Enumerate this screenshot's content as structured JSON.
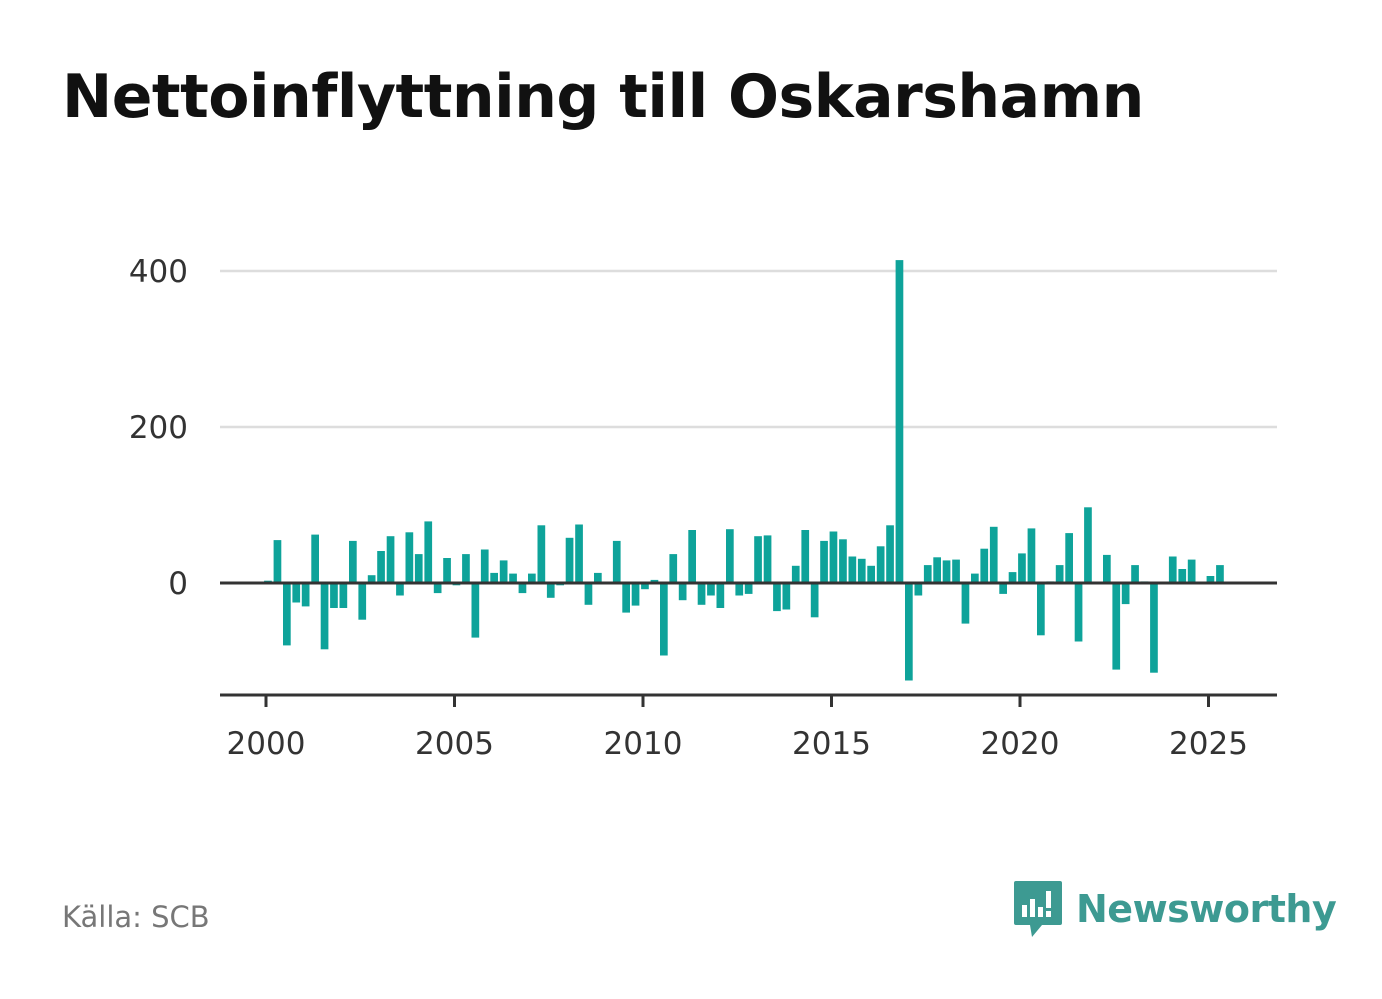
{
  "title": "Nettoinflyttning till Oskarshamn",
  "source": "Källa: SCB",
  "brand": {
    "name": "Newsworthy",
    "icon": "chart-bubble-icon",
    "color": "#3d9a92"
  },
  "chart_data": {
    "type": "bar",
    "title": "Nettoinflyttning till Oskarshamn",
    "xlabel": "",
    "ylabel": "",
    "frequency": "quarterly",
    "start": 2000.0,
    "xlim": [
      1999.25,
      2026.75
    ],
    "ylim": [
      -143,
      430
    ],
    "xticks": [
      2000,
      2005,
      2010,
      2015,
      2020,
      2025
    ],
    "yticks": [
      0,
      200,
      400
    ],
    "grid": "horizontal",
    "bar_color": "#0ea39a",
    "values": [
      3,
      55,
      -80,
      -25,
      -30,
      62,
      -85,
      -32,
      -32,
      54,
      -47,
      10,
      41,
      60,
      -16,
      65,
      37,
      79,
      -13,
      32,
      -3,
      37,
      -70,
      43,
      13,
      29,
      12,
      -13,
      12,
      74,
      -19,
      -3,
      58,
      75,
      -28,
      13,
      0,
      54,
      -38,
      -29,
      -8,
      4,
      -93,
      37,
      -22,
      68,
      -28,
      -16,
      -32,
      69,
      -16,
      -14,
      60,
      61,
      -36,
      -34,
      22,
      68,
      -44,
      54,
      66,
      56,
      34,
      31,
      22,
      47,
      74,
      414,
      -125,
      -16,
      23,
      33,
      29,
      30,
      -52,
      12,
      44,
      72,
      -14,
      14,
      38,
      70,
      -67,
      2,
      23,
      64,
      -75,
      97,
      1,
      36,
      -111,
      -27,
      23,
      2,
      -115,
      0,
      34,
      18,
      30,
      0,
      9,
      23
    ]
  }
}
